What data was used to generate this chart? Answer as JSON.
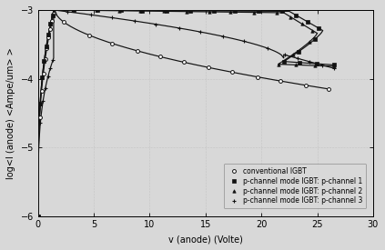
{
  "title": "",
  "xlabel": "v (anode) (Volte)",
  "ylabel": "log<I (anode) <Ampe/um> >",
  "xlim": [
    0.0,
    30.0
  ],
  "ylim": [
    -6.0,
    -3.0
  ],
  "xticks": [
    0.0,
    5.0,
    10.0,
    15.0,
    20.0,
    25.0,
    30.0
  ],
  "yticks": [
    -6,
    -5,
    -4,
    -3
  ],
  "legend_labels": [
    "conventional IGBT",
    "p-channel mode IGBT: p-channel 1",
    "p-channel mode IGBT: p-channel 2",
    "p-channel mode IGBT: p-channel 3"
  ],
  "background_color": "#d8d8d8",
  "line_color": "#111111",
  "fontsize": 7,
  "grid_color": "#aaaaaa",
  "grid_style": ":",
  "grid_alpha": 0.8
}
